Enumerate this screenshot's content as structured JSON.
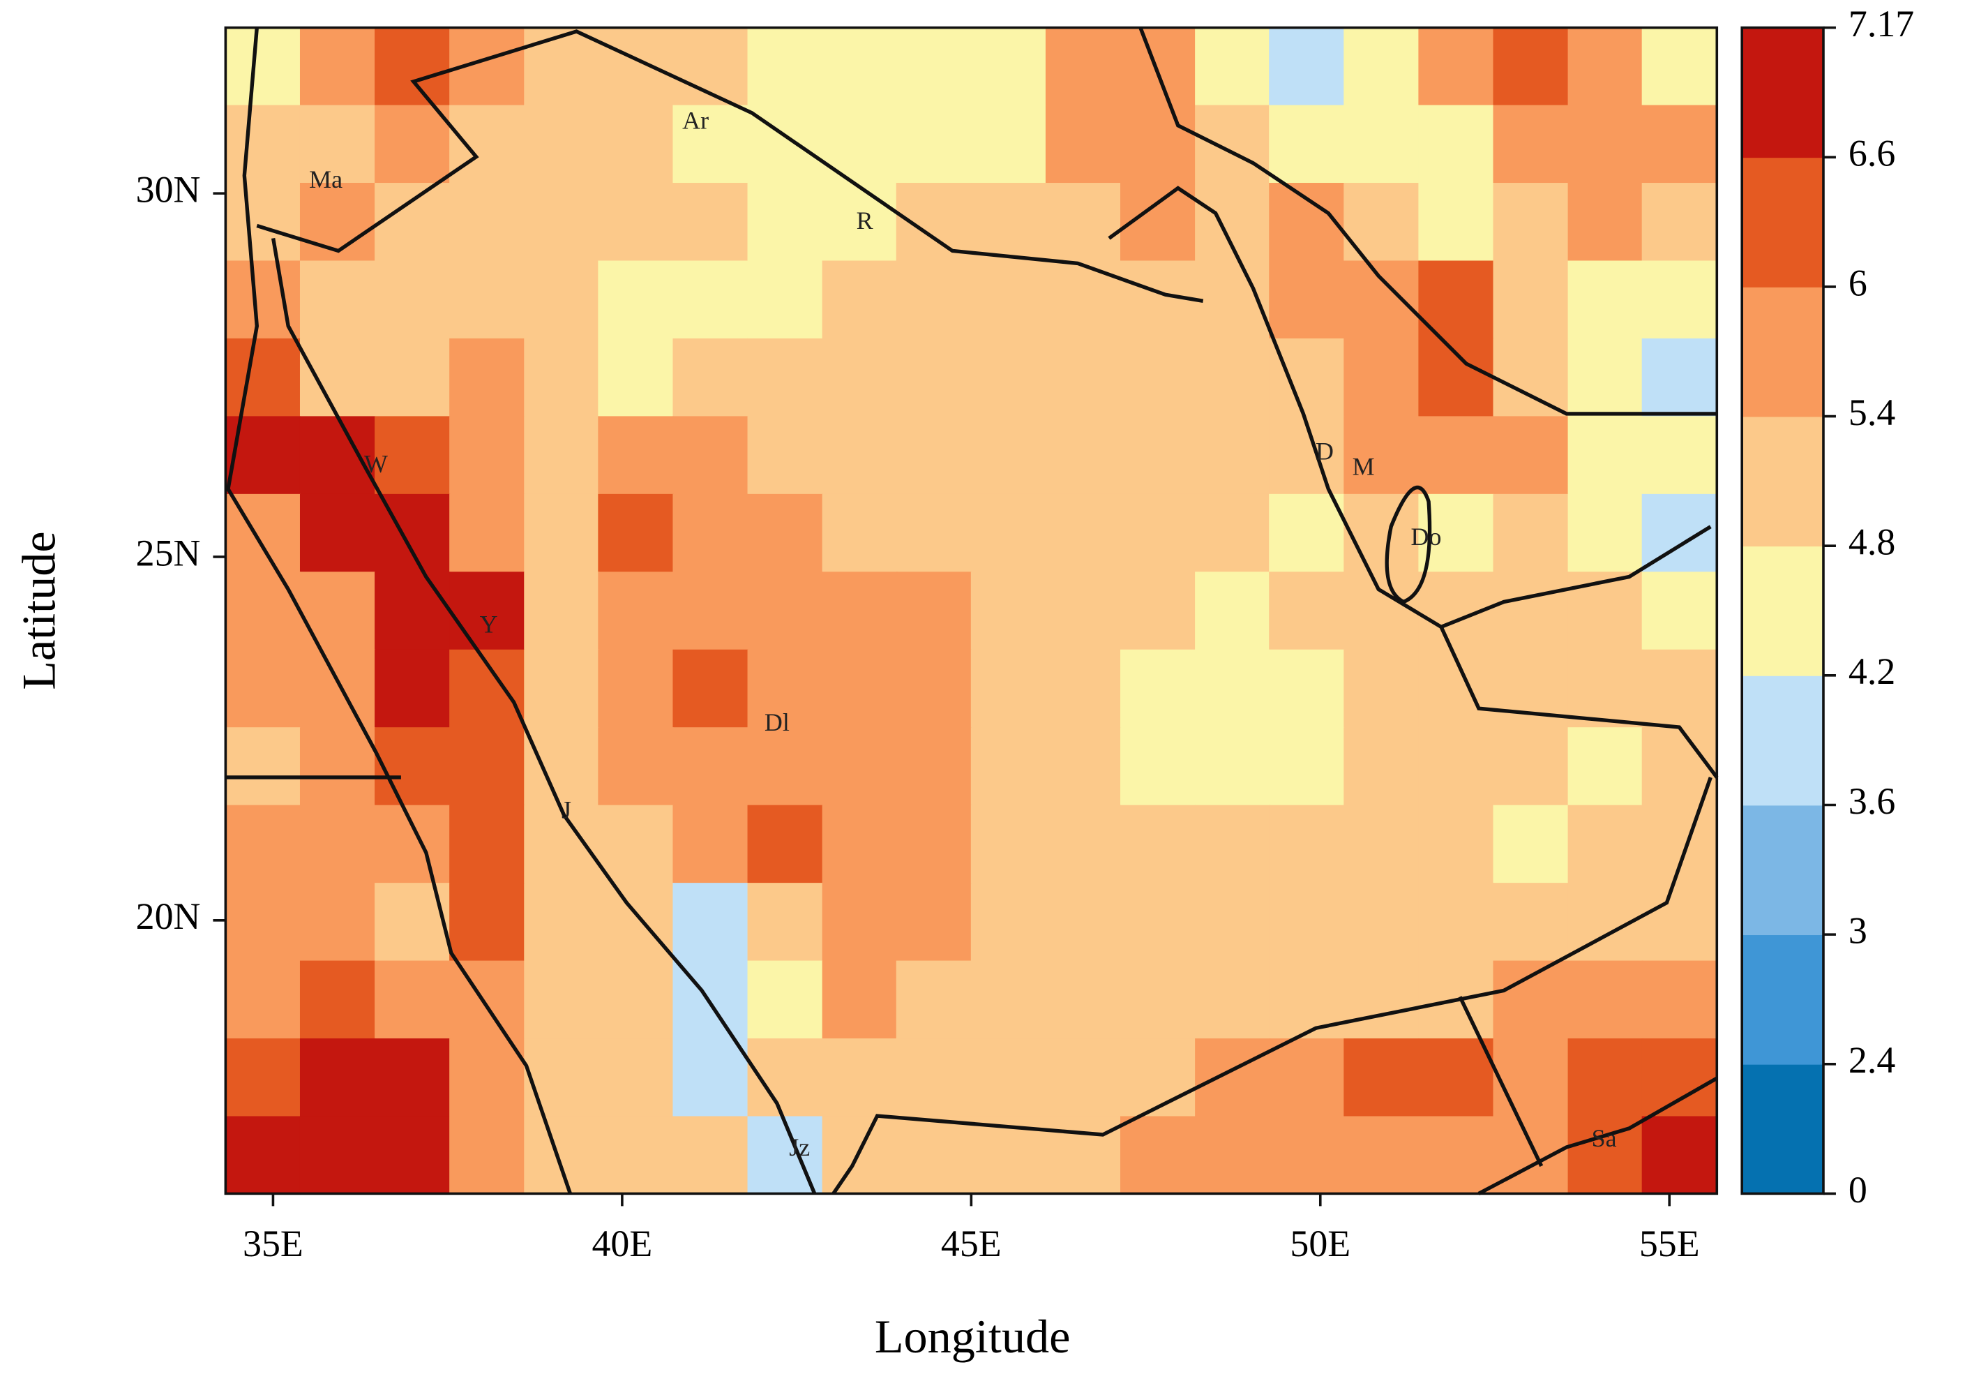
{
  "chart_data": {
    "type": "heatmap",
    "x_label": "Longitude",
    "y_label": "Latitude",
    "xlim": [
      34.32,
      55.68
    ],
    "ylim": [
      16.24,
      32.28
    ],
    "xticks": [
      {
        "value": 35,
        "label": "35E"
      },
      {
        "value": 40,
        "label": "40E"
      },
      {
        "value": 45,
        "label": "45E"
      },
      {
        "value": 50,
        "label": "50E"
      },
      {
        "value": 55,
        "label": "55E"
      }
    ],
    "yticks": [
      {
        "value": 20,
        "label": "20N"
      },
      {
        "value": 25,
        "label": "25N"
      },
      {
        "value": 30,
        "label": "30N"
      }
    ],
    "x": [
      34.85,
      35.92,
      36.99,
      38.06,
      39.13,
      40.19,
      41.26,
      42.33,
      43.4,
      44.46,
      45.53,
      46.6,
      47.67,
      48.74,
      49.8,
      50.87,
      51.94,
      53.01,
      54.08,
      55.14
    ],
    "y": [
      31.75,
      30.68,
      29.61,
      28.54,
      27.47,
      26.4,
      25.33,
      24.26,
      23.19,
      22.12,
      21.05,
      19.98,
      18.91,
      17.84,
      16.77
    ],
    "values": [
      [
        4.5,
        5.7,
        6.3,
        5.7,
        5.1,
        5.1,
        5.1,
        4.5,
        4.5,
        4.5,
        4.5,
        5.7,
        5.7,
        4.5,
        3.9,
        4.5,
        5.7,
        6.3,
        5.7,
        4.5
      ],
      [
        5.1,
        5.1,
        5.7,
        5.1,
        5.1,
        5.1,
        4.5,
        4.5,
        4.5,
        4.5,
        4.5,
        5.7,
        5.7,
        5.1,
        4.5,
        4.5,
        4.5,
        5.7,
        5.7,
        5.7
      ],
      [
        5.1,
        5.7,
        5.1,
        5.1,
        5.1,
        5.1,
        5.1,
        4.5,
        4.5,
        5.1,
        5.1,
        5.1,
        5.7,
        5.1,
        5.7,
        5.1,
        4.5,
        5.1,
        5.7,
        5.1
      ],
      [
        5.7,
        5.1,
        5.1,
        5.1,
        5.1,
        4.5,
        4.5,
        4.5,
        5.1,
        5.1,
        5.1,
        5.1,
        5.1,
        5.1,
        5.7,
        5.7,
        6.3,
        5.1,
        4.5,
        4.5
      ],
      [
        6.3,
        5.1,
        5.1,
        5.7,
        5.1,
        4.5,
        5.1,
        5.1,
        5.1,
        5.1,
        5.1,
        5.1,
        5.1,
        5.1,
        5.1,
        5.7,
        6.3,
        5.1,
        4.5,
        3.9
      ],
      [
        6.9,
        6.9,
        6.3,
        5.7,
        5.1,
        5.7,
        5.7,
        5.1,
        5.1,
        5.1,
        5.1,
        5.1,
        5.1,
        5.1,
        5.1,
        5.7,
        5.7,
        5.7,
        4.5,
        4.5
      ],
      [
        5.7,
        6.9,
        6.9,
        5.7,
        5.1,
        6.3,
        5.7,
        5.7,
        5.1,
        5.1,
        5.1,
        5.1,
        5.1,
        5.1,
        4.5,
        5.1,
        4.5,
        5.1,
        4.5,
        3.9
      ],
      [
        5.7,
        5.7,
        6.9,
        6.9,
        5.1,
        5.7,
        5.7,
        5.7,
        5.7,
        5.7,
        5.1,
        5.1,
        5.1,
        4.5,
        5.1,
        5.1,
        5.1,
        5.1,
        5.1,
        4.5
      ],
      [
        5.7,
        5.7,
        6.9,
        6.3,
        5.1,
        5.7,
        6.3,
        5.7,
        5.7,
        5.7,
        5.1,
        5.1,
        4.5,
        4.5,
        4.5,
        5.1,
        5.1,
        5.1,
        5.1,
        5.1
      ],
      [
        5.1,
        5.7,
        6.3,
        6.3,
        5.1,
        5.7,
        5.7,
        5.7,
        5.7,
        5.7,
        5.1,
        5.1,
        4.5,
        4.5,
        4.5,
        5.1,
        5.1,
        5.1,
        4.5,
        5.1
      ],
      [
        5.7,
        5.7,
        5.7,
        6.3,
        5.1,
        5.1,
        5.7,
        6.3,
        5.7,
        5.7,
        5.1,
        5.1,
        5.1,
        5.1,
        5.1,
        5.1,
        5.1,
        4.5,
        5.1,
        5.1
      ],
      [
        5.7,
        5.7,
        5.1,
        6.3,
        5.1,
        5.1,
        3.9,
        5.1,
        5.7,
        5.7,
        5.1,
        5.1,
        5.1,
        5.1,
        5.1,
        5.1,
        5.1,
        5.1,
        5.1,
        5.1
      ],
      [
        5.7,
        6.3,
        5.7,
        5.7,
        5.1,
        5.1,
        3.9,
        4.5,
        5.7,
        5.1,
        5.1,
        5.1,
        5.1,
        5.1,
        5.1,
        5.1,
        5.1,
        5.7,
        5.7,
        5.7
      ],
      [
        6.3,
        6.9,
        6.9,
        5.7,
        5.1,
        5.1,
        3.9,
        5.1,
        5.1,
        5.1,
        5.1,
        5.1,
        5.1,
        5.7,
        5.7,
        6.3,
        6.3,
        5.7,
        6.3,
        6.3
      ],
      [
        6.9,
        6.9,
        6.9,
        5.7,
        5.1,
        5.1,
        5.1,
        3.9,
        5.1,
        5.1,
        5.1,
        5.1,
        5.7,
        5.7,
        5.7,
        5.7,
        5.7,
        5.7,
        6.3,
        6.9
      ]
    ],
    "levels": [
      0,
      2.4,
      3,
      3.6,
      4.2,
      4.8,
      5.4,
      6,
      6.6,
      7.17
    ],
    "colors": [
      "#0571b0",
      "#3f96d6",
      "#7cb7e5",
      "#bfe0f7",
      "#fbf5a8",
      "#fcc98a",
      "#f99a5c",
      "#e55a22",
      "#c4170f"
    ],
    "places": [
      "Ar",
      "R",
      "Ma",
      "W",
      "Y",
      "Dl",
      "J",
      "Jz",
      "D",
      "M",
      "Do",
      "Sa"
    ]
  }
}
